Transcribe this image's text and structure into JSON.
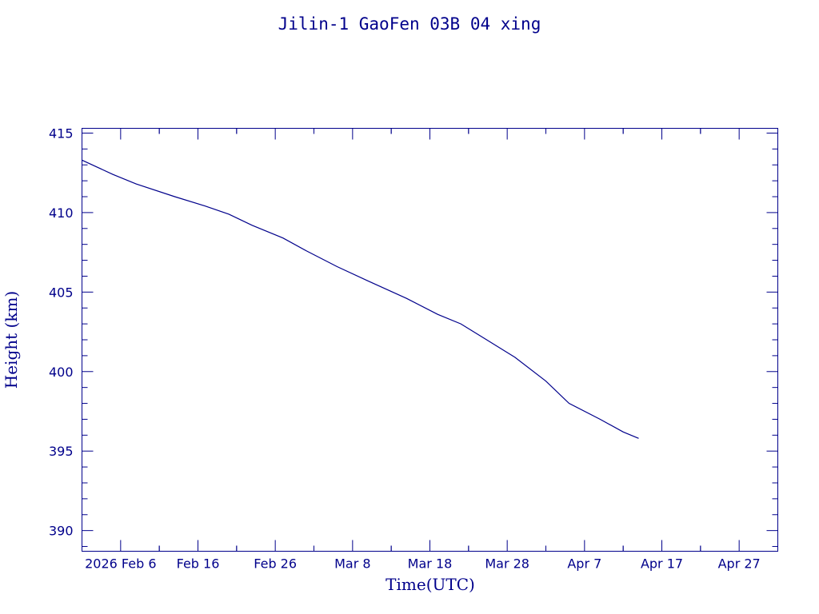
{
  "chart_data": {
    "type": "line",
    "title": "Jilin-1 GaoFen 03B 04 xing",
    "xlabel": "Time(UTC)",
    "ylabel": "Height (km)",
    "x_range": [
      "2026-02-01",
      "2026-05-02"
    ],
    "ylim": [
      388.7,
      415.3
    ],
    "y_ticks": [
      390,
      395,
      400,
      405,
      410,
      415
    ],
    "y_tick_labels": [
      "390",
      "395",
      "400",
      "405",
      "410",
      "415"
    ],
    "x_ticks": [
      "2026-02-06",
      "2026-02-16",
      "2026-02-26",
      "2026-03-08",
      "2026-03-18",
      "2026-03-28",
      "2026-04-07",
      "2026-04-17",
      "2026-04-27"
    ],
    "x_tick_labels": [
      "2026 Feb  6",
      "Feb 16",
      "Feb 26",
      "Mar  8",
      "Mar 18",
      "Mar 28",
      "Apr  7",
      "Apr 17",
      "Apr 27"
    ],
    "grid": false,
    "series": [
      {
        "x": [
          "2026-02-01",
          "2026-02-05",
          "2026-02-08",
          "2026-02-13",
          "2026-02-17",
          "2026-02-20",
          "2026-02-23",
          "2026-02-27",
          "2026-03-02",
          "2026-03-06",
          "2026-03-10",
          "2026-03-15",
          "2026-03-19",
          "2026-03-22",
          "2026-03-25",
          "2026-03-29",
          "2026-04-02",
          "2026-04-05",
          "2026-04-09",
          "2026-04-12",
          "2026-04-14"
        ],
        "y": [
          413.3,
          412.4,
          411.8,
          411.0,
          410.4,
          409.9,
          409.2,
          408.4,
          407.6,
          406.6,
          405.7,
          404.6,
          403.6,
          403.0,
          402.1,
          400.9,
          399.4,
          398.0,
          397.0,
          396.2,
          395.8
        ]
      }
    ]
  }
}
